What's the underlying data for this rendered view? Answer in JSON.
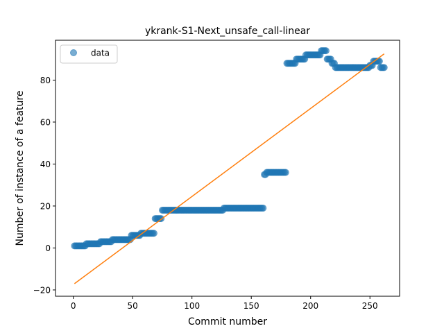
{
  "chart_data": {
    "type": "scatter",
    "title": "ykrank-S1-Next_unsafe_call-linear",
    "xlabel": "Commit number",
    "ylabel": "Number of instance of a feature",
    "xlim": [
      -15,
      275
    ],
    "ylim": [
      -23,
      99
    ],
    "xticks": [
      0,
      50,
      100,
      150,
      200,
      250
    ],
    "yticks": [
      -20,
      0,
      20,
      40,
      60,
      80
    ],
    "grid": false,
    "legend": {
      "position": "top-left",
      "entries": [
        "data"
      ]
    },
    "colors": {
      "data": "#1f77b4",
      "fit": "#ff7f0e"
    },
    "series": [
      {
        "name": "data",
        "kind": "points",
        "segments": [
          {
            "x_from": 1,
            "x_to": 10,
            "y": 1
          },
          {
            "x_from": 11,
            "x_to": 22,
            "y": 2
          },
          {
            "x_from": 23,
            "x_to": 32,
            "y": 3
          },
          {
            "x_from": 33,
            "x_to": 46,
            "y": 4
          },
          {
            "x_from": 47,
            "x_to": 48,
            "y": 4
          },
          {
            "x_from": 49,
            "x_to": 56,
            "y": 6
          },
          {
            "x_from": 57,
            "x_to": 68,
            "y": 7
          },
          {
            "x_from": 69,
            "x_to": 74,
            "y": 14
          },
          {
            "x_from": 75,
            "x_to": 126,
            "y": 18
          },
          {
            "x_from": 127,
            "x_to": 160,
            "y": 19
          },
          {
            "x_from": 161,
            "x_to": 162,
            "y": 35
          },
          {
            "x_from": 163,
            "x_to": 179,
            "y": 36
          },
          {
            "x_from": 180,
            "x_to": 187,
            "y": 88
          },
          {
            "x_from": 188,
            "x_to": 195,
            "y": 90
          },
          {
            "x_from": 196,
            "x_to": 208,
            "y": 92
          },
          {
            "x_from": 209,
            "x_to": 213,
            "y": 94
          },
          {
            "x_from": 214,
            "x_to": 217,
            "y": 90
          },
          {
            "x_from": 218,
            "x_to": 220,
            "y": 88
          },
          {
            "x_from": 221,
            "x_to": 249,
            "y": 86
          },
          {
            "x_from": 250,
            "x_to": 252,
            "y": 87
          },
          {
            "x_from": 253,
            "x_to": 258,
            "y": 89
          },
          {
            "x_from": 259,
            "x_to": 262,
            "y": 86
          }
        ]
      },
      {
        "name": "",
        "kind": "line",
        "x": [
          1,
          262
        ],
        "y": [
          -17,
          92.5
        ]
      }
    ]
  }
}
